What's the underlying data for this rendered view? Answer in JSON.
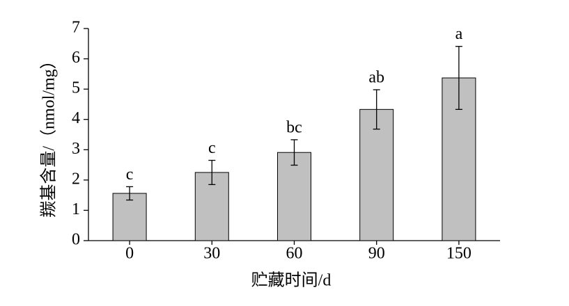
{
  "chart_data": {
    "type": "bar",
    "x_label": "贮藏时间/d",
    "y_label": "羰基含量/（nmol/mg）",
    "categories": [
      "0",
      "30",
      "60",
      "90",
      "150"
    ],
    "values": [
      1.56,
      2.25,
      2.91,
      4.33,
      5.37
    ],
    "errors": [
      0.22,
      0.4,
      0.42,
      0.65,
      1.04
    ],
    "significance": [
      "c",
      "c",
      "bc",
      "ab",
      "a"
    ],
    "color": "#c0c0c0",
    "ylim": [
      0,
      7
    ],
    "yticks": [
      0,
      1,
      2,
      3,
      4,
      5,
      6,
      7
    ],
    "grid": false
  }
}
